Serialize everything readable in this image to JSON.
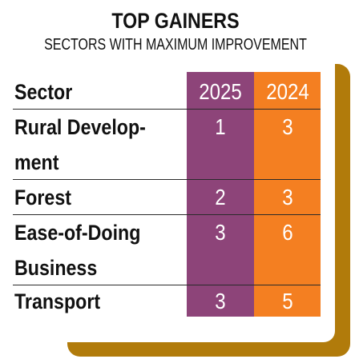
{
  "title": "TOP GAINERS",
  "subtitle": "SECTORS WITH MAXIMUM IMPROVEMENT",
  "colors": {
    "col_2025": "#8d4479",
    "col_2024": "#f47f21",
    "shadow": "#b17b0b"
  },
  "table": {
    "headers": {
      "sector": "Sector",
      "y2025": "2025",
      "y2024": "2024"
    },
    "rows": [
      {
        "sector_line1": "Rural Develop-",
        "sector_line2": "ment",
        "y2025": "1",
        "y2024": "3"
      },
      {
        "sector_line1": "Forest",
        "sector_line2": "",
        "y2025": "2",
        "y2024": "3"
      },
      {
        "sector_line1": "Ease-of-Doing",
        "sector_line2": "Business",
        "y2025": "3",
        "y2024": "6"
      },
      {
        "sector_line1": "Transport",
        "sector_line2": "",
        "y2025": "3",
        "y2024": "5"
      }
    ]
  }
}
